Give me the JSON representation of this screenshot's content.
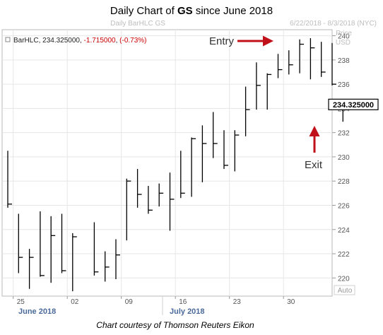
{
  "title": {
    "prefix": "Daily Chart of ",
    "symbol": "GS",
    "suffix": " since June 2018"
  },
  "subtitle_center": "Daily BarHLC GS",
  "subtitle_right": "6/22/2018 - 8/3/2018 (NYC)",
  "info": {
    "series": "BarHLC",
    "last": "234.325000",
    "change": "-1.715000",
    "change_pct": "(-0.73%)",
    "change_color": "#cc0000"
  },
  "axis_right": {
    "label_line1": "Price",
    "label_line2": "USD",
    "auto_label": "Auto"
  },
  "price_tag": "234.325000",
  "annotations": {
    "entry": "Entry",
    "exit": "Exit",
    "arrow_color": "#c0101a"
  },
  "caption": "Chart courtesy of Thomson Reuters Eikon",
  "chart_data": {
    "type": "bar",
    "subtype": "ohlc-hlc",
    "title": "Daily Chart of GS since June 2018",
    "ylabel": "Price USD",
    "ylim": [
      218.5,
      240.5
    ],
    "y_ticks": [
      220,
      222,
      224,
      226,
      228,
      230,
      232,
      234,
      236,
      238,
      240
    ],
    "x_tick_labels": [
      "25",
      "02",
      "09",
      "16",
      "23",
      "30"
    ],
    "month_labels": [
      "June 2018",
      "July 2018"
    ],
    "grid": true,
    "bars": [
      {
        "high": 230.5,
        "low": 225.8,
        "close": 226.1
      },
      {
        "high": 225.3,
        "low": 220.4,
        "close": 221.7
      },
      {
        "high": 222.4,
        "low": 219.1,
        "close": 221.7
      },
      {
        "high": 225.5,
        "low": 220.1,
        "close": 220.2
      },
      {
        "high": 225.1,
        "low": 219.6,
        "close": 223.5
      },
      {
        "high": 225.3,
        "low": 220.4,
        "close": 220.6
      },
      {
        "high": 223.7,
        "low": 218.9,
        "close": 223.4
      },
      {
        "high": 224.6,
        "low": 220.2,
        "close": 220.5
      },
      {
        "high": 222.2,
        "low": 219.7,
        "close": 220.9
      },
      {
        "high": 223.2,
        "low": 219.9,
        "close": 221.9
      },
      {
        "high": 228.2,
        "low": 223.1,
        "close": 228.0
      },
      {
        "high": 229.0,
        "low": 225.8,
        "close": 226.9
      },
      {
        "high": 227.6,
        "low": 225.3,
        "close": 225.6
      },
      {
        "high": 227.8,
        "low": 225.9,
        "close": 227.0
      },
      {
        "high": 228.7,
        "low": 223.9,
        "close": 226.5
      },
      {
        "high": 230.5,
        "low": 226.6,
        "close": 227.0
      },
      {
        "high": 231.6,
        "low": 226.7,
        "close": 231.5
      },
      {
        "high": 232.6,
        "low": 227.9,
        "close": 231.1
      },
      {
        "high": 233.7,
        "low": 229.9,
        "close": 231.1
      },
      {
        "high": 232.2,
        "low": 229.0,
        "close": 229.3
      },
      {
        "high": 232.2,
        "low": 228.8,
        "close": 231.8
      },
      {
        "high": 235.8,
        "low": 231.7,
        "close": 233.9
      },
      {
        "high": 237.8,
        "low": 233.9,
        "close": 235.9
      },
      {
        "high": 236.9,
        "low": 233.9,
        "close": 236.8
      },
      {
        "high": 238.5,
        "low": 236.5,
        "close": 237.2
      },
      {
        "high": 238.8,
        "low": 236.8,
        "close": 237.6
      },
      {
        "high": 239.7,
        "low": 236.9,
        "close": 239.3
      },
      {
        "high": 239.8,
        "low": 236.4,
        "close": 239.0
      },
      {
        "high": 239.5,
        "low": 236.6,
        "close": 237.0
      },
      {
        "high": 239.4,
        "low": 235.9,
        "close": 236.0
      },
      {
        "high": 234.6,
        "low": 232.9,
        "close": 234.325
      }
    ]
  }
}
